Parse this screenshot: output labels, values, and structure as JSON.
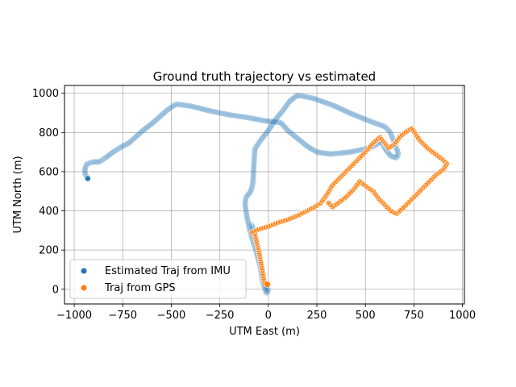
{
  "chart_data": {
    "type": "scatter",
    "title": "Ground truth trajectory vs estimated",
    "xlabel": "UTM East (m)",
    "ylabel": "UTM North (m)",
    "xlim": [
      -1050,
      1010
    ],
    "ylim": [
      -75,
      1040
    ],
    "xticks": [
      -1000,
      -750,
      -500,
      -250,
      0,
      250,
      500,
      750,
      1000
    ],
    "yticks": [
      0,
      200,
      400,
      600,
      800,
      1000
    ],
    "grid": true,
    "legend_position": "lower-left",
    "series": [
      {
        "name": "Estimated Traj from IMU",
        "color": "#1f77b4",
        "path": [
          [
            -930,
            565
          ],
          [
            -945,
            590
          ],
          [
            -945,
            615
          ],
          [
            -935,
            640
          ],
          [
            -900,
            650
          ],
          [
            -870,
            650
          ],
          [
            -840,
            670
          ],
          [
            -800,
            700
          ],
          [
            -760,
            725
          ],
          [
            -720,
            745
          ],
          [
            -680,
            780
          ],
          [
            -640,
            815
          ],
          [
            -600,
            845
          ],
          [
            -560,
            880
          ],
          [
            -520,
            915
          ],
          [
            -475,
            945
          ],
          [
            -400,
            935
          ],
          [
            -300,
            910
          ],
          [
            -200,
            890
          ],
          [
            -100,
            875
          ],
          [
            -20,
            860
          ],
          [
            30,
            855
          ],
          [
            65,
            850
          ],
          [
            100,
            810
          ],
          [
            150,
            770
          ],
          [
            200,
            730
          ],
          [
            250,
            700
          ],
          [
            320,
            690
          ],
          [
            420,
            700
          ],
          [
            520,
            720
          ],
          [
            560,
            740
          ],
          [
            580,
            760
          ],
          [
            600,
            720
          ],
          [
            630,
            680
          ],
          [
            660,
            670
          ],
          [
            670,
            690
          ],
          [
            660,
            720
          ],
          [
            645,
            760
          ],
          [
            625,
            805
          ],
          [
            600,
            830
          ],
          [
            530,
            855
          ],
          [
            430,
            895
          ],
          [
            330,
            940
          ],
          [
            230,
            975
          ],
          [
            150,
            990
          ],
          [
            110,
            960
          ],
          [
            70,
            905
          ],
          [
            40,
            870
          ],
          [
            0,
            810
          ],
          [
            -40,
            760
          ],
          [
            -70,
            715
          ],
          [
            -75,
            620
          ],
          [
            -80,
            540
          ],
          [
            -90,
            500
          ],
          [
            -115,
            470
          ],
          [
            -120,
            430
          ],
          [
            -110,
            370
          ],
          [
            -95,
            300
          ],
          [
            -80,
            250
          ],
          [
            -60,
            185
          ],
          [
            -40,
            110
          ],
          [
            -30,
            40
          ],
          [
            -10,
            -20
          ],
          [
            0,
            -5
          ],
          [
            -20,
            30
          ],
          [
            -35,
            120
          ],
          [
            -50,
            200
          ],
          [
            -70,
            280
          ],
          [
            -85,
            330
          ]
        ]
      },
      {
        "name": "Traj from GPS",
        "color": "#ff7f0e",
        "path": [
          [
            -10,
            25
          ],
          [
            -20,
            30
          ],
          [
            -35,
            120
          ],
          [
            -50,
            200
          ],
          [
            -70,
            280
          ],
          [
            -85,
            290
          ],
          [
            -50,
            305
          ],
          [
            0,
            320
          ],
          [
            50,
            340
          ],
          [
            100,
            355
          ],
          [
            150,
            375
          ],
          [
            200,
            400
          ],
          [
            240,
            420
          ],
          [
            270,
            440
          ],
          [
            300,
            480
          ],
          [
            330,
            530
          ],
          [
            360,
            560
          ],
          [
            400,
            600
          ],
          [
            440,
            640
          ],
          [
            480,
            680
          ],
          [
            510,
            710
          ],
          [
            530,
            735
          ],
          [
            555,
            760
          ],
          [
            575,
            775
          ],
          [
            600,
            745
          ],
          [
            620,
            720
          ],
          [
            650,
            740
          ],
          [
            680,
            780
          ],
          [
            720,
            810
          ],
          [
            740,
            820
          ],
          [
            780,
            760
          ],
          [
            820,
            720
          ],
          [
            860,
            690
          ],
          [
            900,
            660
          ],
          [
            920,
            640
          ],
          [
            900,
            610
          ],
          [
            860,
            580
          ],
          [
            820,
            540
          ],
          [
            780,
            500
          ],
          [
            740,
            460
          ],
          [
            700,
            420
          ],
          [
            660,
            385
          ],
          [
            630,
            400
          ],
          [
            600,
            430
          ],
          [
            570,
            460
          ],
          [
            540,
            500
          ],
          [
            510,
            520
          ],
          [
            470,
            550
          ],
          [
            440,
            510
          ],
          [
            400,
            470
          ],
          [
            360,
            440
          ],
          [
            330,
            420
          ],
          [
            310,
            440
          ]
        ],
        "endpoint": [
          -5,
          25
        ]
      }
    ]
  }
}
